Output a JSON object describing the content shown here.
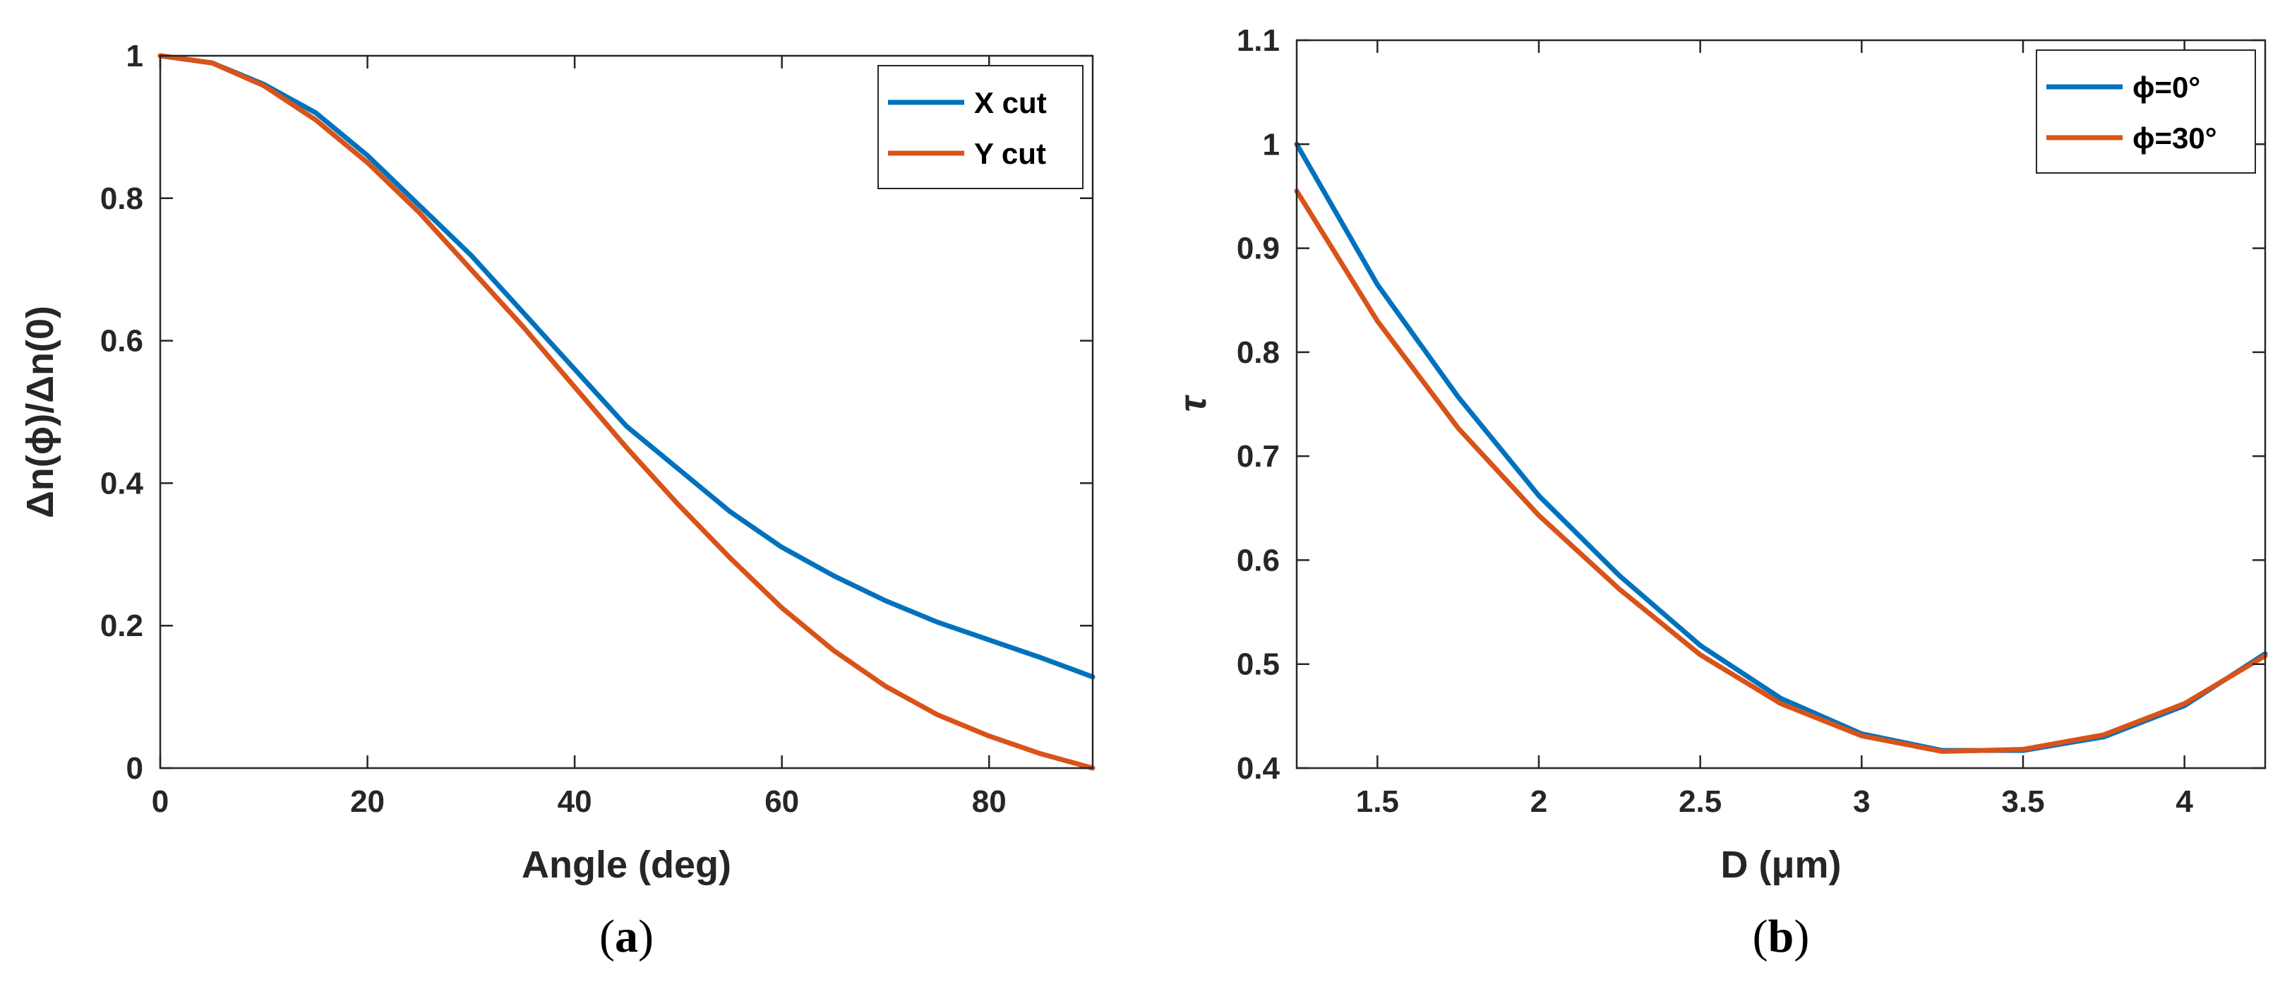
{
  "colors": {
    "series1": "#0072BD",
    "series2": "#D95319",
    "axis": "#262626"
  },
  "chart_data": [
    {
      "type": "line",
      "caption": "(a)",
      "xlabel": "Angle (deg)",
      "ylabel": "Δn(ϕ)/Δn(0)",
      "xlim": [
        0,
        90
      ],
      "ylim": [
        0,
        1
      ],
      "xticks": [
        0,
        20,
        40,
        60,
        80
      ],
      "yticks": [
        0,
        0.2,
        0.4,
        0.6,
        0.8,
        1
      ],
      "xtick_labels": [
        "0",
        "20",
        "40",
        "60",
        "80"
      ],
      "ytick_labels": [
        "0",
        "0.2",
        "0.4",
        "0.6",
        "0.8",
        "1"
      ],
      "legend_position": "top-right",
      "x": [
        0,
        5,
        10,
        15,
        20,
        25,
        30,
        35,
        40,
        45,
        50,
        55,
        60,
        65,
        70,
        75,
        80,
        85,
        90
      ],
      "series": [
        {
          "name": "X cut",
          "values": [
            1.0,
            0.99,
            0.96,
            0.92,
            0.86,
            0.79,
            0.72,
            0.64,
            0.56,
            0.48,
            0.42,
            0.36,
            0.31,
            0.27,
            0.235,
            0.205,
            0.18,
            0.155,
            0.128
          ]
        },
        {
          "name": "Y cut",
          "values": [
            1.0,
            0.99,
            0.958,
            0.91,
            0.85,
            0.78,
            0.7,
            0.62,
            0.535,
            0.45,
            0.37,
            0.295,
            0.225,
            0.165,
            0.115,
            0.075,
            0.045,
            0.02,
            0.0
          ]
        }
      ]
    },
    {
      "type": "line",
      "caption": "(b)",
      "xlabel": "D (μm)",
      "ylabel": "τ",
      "xlim": [
        1.25,
        4.25
      ],
      "ylim": [
        0.4,
        1.1
      ],
      "xticks": [
        1.5,
        2,
        2.5,
        3,
        3.5,
        4
      ],
      "yticks": [
        0.4,
        0.5,
        0.6,
        0.7,
        0.8,
        0.9,
        1,
        1.1
      ],
      "xtick_labels": [
        "1.5",
        "2",
        "2.5",
        "3",
        "3.5",
        "4"
      ],
      "ytick_labels": [
        "0.4",
        "0.5",
        "0.6",
        "0.7",
        "0.8",
        "0.9",
        "1",
        "1.1"
      ],
      "legend_position": "top-right",
      "x": [
        1.25,
        1.5,
        1.75,
        2.0,
        2.25,
        2.5,
        2.75,
        3.0,
        3.25,
        3.5,
        3.75,
        4.0,
        4.25
      ],
      "series": [
        {
          "name": "ϕ=0°",
          "values": [
            1.0,
            0.865,
            0.757,
            0.662,
            0.585,
            0.518,
            0.467,
            0.433,
            0.417,
            0.417,
            0.43,
            0.46,
            0.51
          ]
        },
        {
          "name": "ϕ=30°",
          "values": [
            0.955,
            0.83,
            0.727,
            0.643,
            0.572,
            0.509,
            0.462,
            0.431,
            0.416,
            0.418,
            0.432,
            0.462,
            0.508
          ]
        }
      ]
    }
  ]
}
